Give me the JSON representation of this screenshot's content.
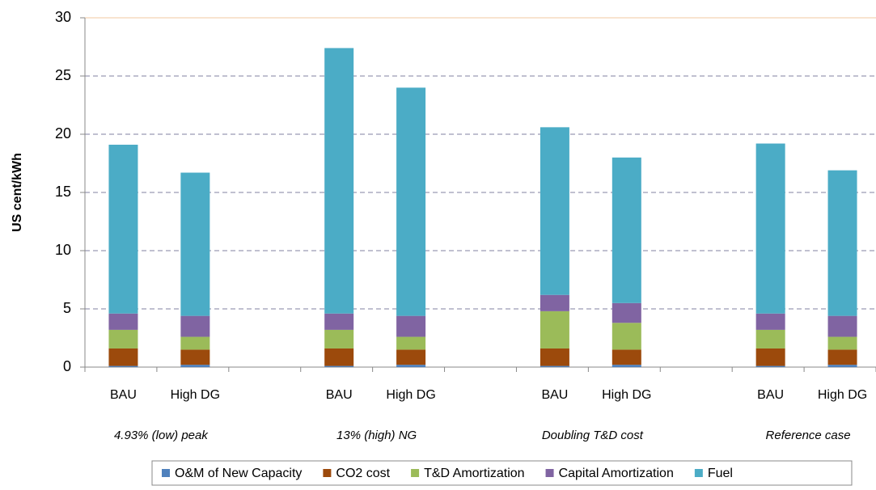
{
  "chart_data": {
    "type": "stacked_bar",
    "ylabel": "US cent/kWh",
    "categories": [
      "BAU",
      "High DG",
      null,
      "BAU",
      "High DG",
      null,
      "BAU",
      "High DG",
      null,
      "BAU",
      "High DG"
    ],
    "group_labels": [
      "4.93% (low) peak",
      "13% (high)  NG",
      "Doubling T&D cost",
      "Reference case"
    ],
    "series": [
      {
        "name": "O&M of New Capacity",
        "color": "#4f81bd",
        "values": [
          0.1,
          0.2,
          null,
          0.1,
          0.2,
          null,
          0.1,
          0.2,
          null,
          0.1,
          0.2
        ]
      },
      {
        "name": "CO2 cost",
        "color": "#9c4a0c",
        "values": [
          1.5,
          1.3,
          null,
          1.5,
          1.3,
          null,
          1.5,
          1.3,
          null,
          1.5,
          1.3
        ]
      },
      {
        "name": "T&D Amortization",
        "color": "#9bbb59",
        "values": [
          1.6,
          1.1,
          null,
          1.6,
          1.1,
          null,
          3.2,
          2.3,
          null,
          1.6,
          1.1
        ]
      },
      {
        "name": "Capital Amortization",
        "color": "#8064a2",
        "values": [
          1.4,
          1.8,
          null,
          1.4,
          1.8,
          null,
          1.4,
          1.7,
          null,
          1.4,
          1.8
        ]
      },
      {
        "name": "Fuel",
        "color": "#4bacc6",
        "values": [
          14.5,
          12.3,
          null,
          22.8,
          19.6,
          null,
          14.4,
          12.5,
          null,
          14.6,
          12.5
        ]
      }
    ],
    "ylim": [
      0,
      30
    ],
    "yticks": [
      0,
      5,
      10,
      15,
      20,
      25,
      30
    ],
    "grid": true,
    "legend": "bottom"
  }
}
